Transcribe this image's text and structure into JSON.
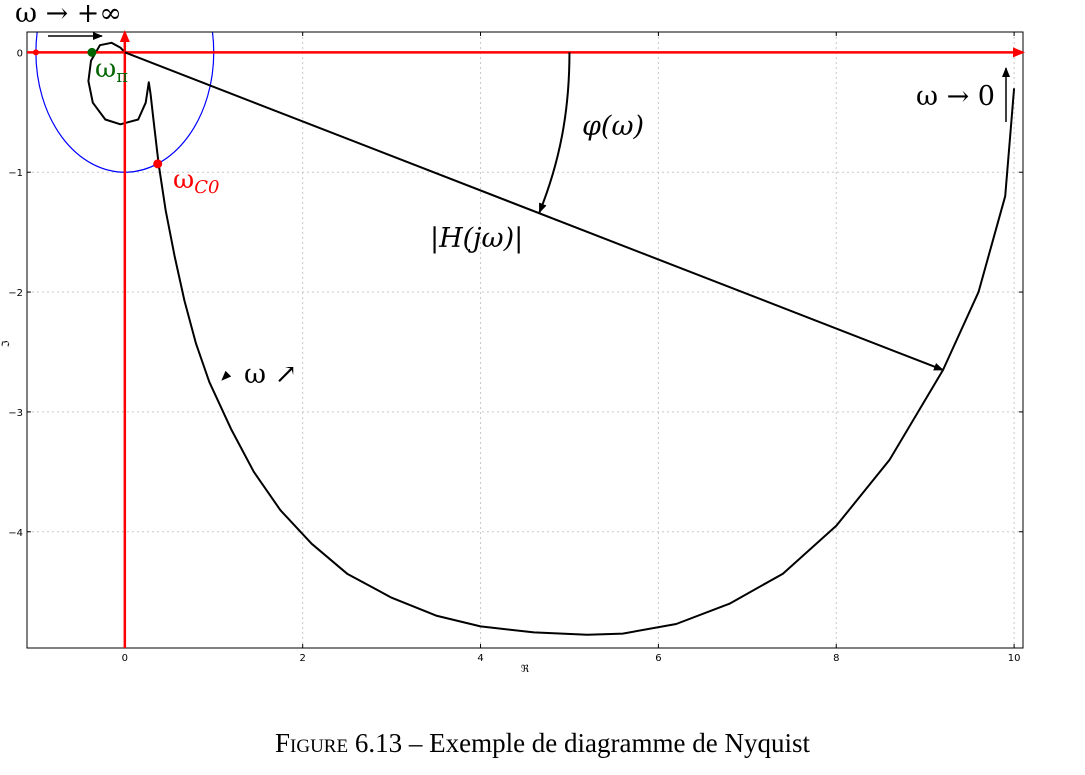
{
  "chart_data": {
    "type": "line",
    "title": "",
    "xlabel": "ℜ",
    "ylabel": "ℑ",
    "xlim": [
      -1.1,
      10.1
    ],
    "ylim": [
      -4.97,
      0.17
    ],
    "grid": true,
    "x_ticks": [
      0,
      2,
      4,
      6,
      8,
      10
    ],
    "x_tick_labels": [
      "0",
      "2",
      "4",
      "6",
      "8",
      "10"
    ],
    "y_ticks": [
      0,
      -1,
      -2,
      -3,
      -4
    ],
    "y_tick_labels": [
      "0",
      "−1",
      "−2",
      "−3",
      "−4"
    ],
    "series": [
      {
        "color": "#000000",
        "points": [
          [
            10.0,
            -0.3
          ],
          [
            9.9,
            -1.2
          ],
          [
            9.6,
            -2.0
          ],
          [
            9.2,
            -2.65
          ],
          [
            8.6,
            -3.4
          ],
          [
            8.0,
            -3.95
          ],
          [
            7.4,
            -4.35
          ],
          [
            6.8,
            -4.6
          ],
          [
            6.2,
            -4.77
          ],
          [
            5.6,
            -4.85
          ],
          [
            5.2,
            -4.86
          ],
          [
            4.6,
            -4.84
          ],
          [
            4.0,
            -4.79
          ],
          [
            3.5,
            -4.7
          ],
          [
            3.0,
            -4.55
          ],
          [
            2.5,
            -4.35
          ],
          [
            2.1,
            -4.1
          ],
          [
            1.75,
            -3.82
          ],
          [
            1.45,
            -3.5
          ],
          [
            1.2,
            -3.15
          ],
          [
            0.95,
            -2.75
          ],
          [
            0.8,
            -2.43
          ],
          [
            0.67,
            -2.07
          ],
          [
            0.56,
            -1.7
          ],
          [
            0.46,
            -1.32
          ],
          [
            0.38,
            -0.93
          ],
          [
            0.32,
            -0.55
          ],
          [
            0.29,
            -0.35
          ],
          [
            0.27,
            -0.25
          ],
          [
            0.235,
            -0.42
          ],
          [
            0.15,
            -0.56
          ],
          [
            -0.05,
            -0.6
          ],
          [
            -0.22,
            -0.56
          ],
          [
            -0.36,
            -0.42
          ],
          [
            -0.41,
            -0.24
          ],
          [
            -0.38,
            -0.07
          ],
          [
            -0.28,
            0.06
          ],
          [
            -0.15,
            0.08
          ],
          [
            -0.05,
            0.04
          ],
          [
            0.0,
            0.0
          ]
        ]
      }
    ],
    "unit_circle": {
      "color": "#0000ff",
      "center": [
        0,
        0
      ],
      "radius": 1
    },
    "axes_color": "#ff0000",
    "points": [
      {
        "label": "ω_π",
        "x": -0.37,
        "y": 0.0,
        "color": "#006400"
      },
      {
        "label": "ω_C0",
        "x": 0.37,
        "y": -0.93,
        "color": "#ff0000"
      },
      {
        "label": "",
        "x": -1.0,
        "y": 0.0,
        "color": "#ff0000"
      }
    ],
    "vector_end": [
      9.2,
      -2.65
    ],
    "annotations": {
      "omega_infinity": "ω → +∞",
      "omega_zero": "ω → 0",
      "omega_pi": "ω",
      "omega_pi_sub": "π",
      "omega_c0": "ω",
      "omega_c0_sub": "C0",
      "phi": "φ(ω)",
      "magnitude": "|H(jω)|",
      "omega_increasing": "ω ↗"
    }
  },
  "caption": {
    "figure_word": "Figure",
    "number": "6.13",
    "dash": "–",
    "text": "Exemple de diagramme de Nyquist"
  }
}
